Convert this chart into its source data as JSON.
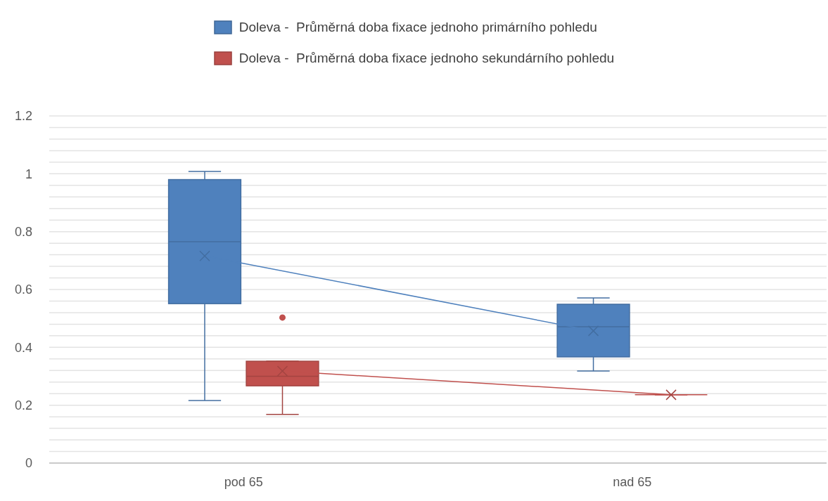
{
  "chart_data": {
    "type": "box",
    "categories": [
      "pod 65",
      "nad 65"
    ],
    "series": [
      {
        "name": "Doleva -  Průměrná doba fixace jednoho primárního pohledu",
        "color": "#4f81bd",
        "boxes": [
          {
            "low": 0.216,
            "q1": 0.551,
            "median": 0.765,
            "q3": 0.98,
            "high": 1.008
          },
          {
            "low": 0.318,
            "q1": 0.367,
            "median": 0.471,
            "q3": 0.549,
            "high": 0.571
          }
        ]
      },
      {
        "name": "Doleva -  Průměrná doba fixace jednoho sekundárního pohledu",
        "color": "#c0504d",
        "boxes": [
          {
            "low": 0.168,
            "q1": 0.267,
            "median": 0.3,
            "q3": 0.352,
            "high": 0.352,
            "outliers": [
              0.503
            ]
          },
          {
            "low": 0.236,
            "q1": 0.236,
            "median": 0.236,
            "q3": 0.236,
            "high": 0.236
          }
        ]
      },
      {
        "type": "line",
        "color": "#4f81bd",
        "values": [
          0.716,
          0.457
        ]
      },
      {
        "type": "line",
        "color": "#c0504d",
        "values": [
          0.318,
          0.236
        ]
      }
    ],
    "ylim": [
      0,
      1.2
    ],
    "yticks": [
      0,
      {
        "value": 0.04,
        "label": null
      },
      {
        "value": 0.08,
        "label": null
      },
      {
        "value": 0.12,
        "label": null
      },
      {
        "value": 0.16,
        "label": null
      },
      0.2,
      {
        "value": 0.24,
        "label": null
      },
      {
        "value": 0.28,
        "label": null
      },
      {
        "value": 0.32,
        "label": null
      },
      {
        "value": 0.36,
        "label": null
      },
      0.4,
      {
        "value": 0.44,
        "label": null
      },
      {
        "value": 0.48,
        "label": null
      },
      {
        "value": 0.52,
        "label": null
      },
      {
        "value": 0.56,
        "label": null
      },
      0.6,
      {
        "value": 0.64,
        "label": null
      },
      {
        "value": 0.68,
        "label": null
      },
      {
        "value": 0.72,
        "label": null
      },
      {
        "value": 0.76,
        "label": null
      },
      0.8,
      {
        "value": 0.84,
        "label": null
      },
      {
        "value": 0.88,
        "label": null
      },
      {
        "value": 0.92,
        "label": null
      },
      {
        "value": 0.96,
        "label": null
      },
      {
        "value": 1,
        "label": "1"
      },
      {
        "value": 1.04,
        "label": null
      },
      {
        "value": 1.08,
        "label": null
      },
      {
        "value": 1.12,
        "label": null
      },
      {
        "value": 1.16,
        "label": null
      },
      1.2
    ],
    "grid": true,
    "legend": "top",
    "marker": "cross"
  }
}
